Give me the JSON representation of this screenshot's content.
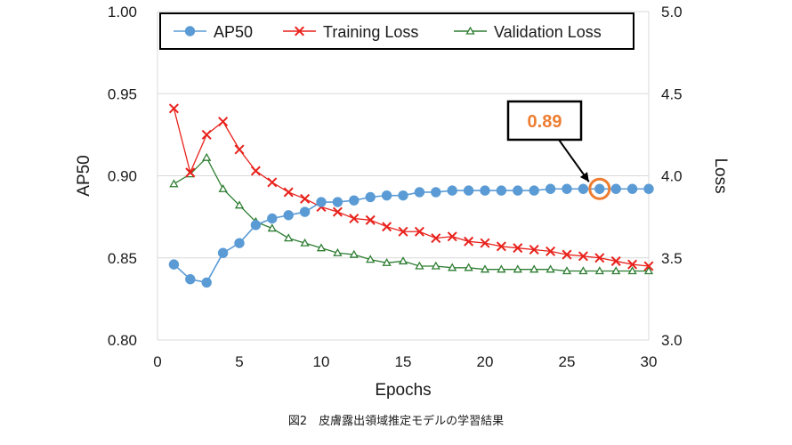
{
  "chart_data": {
    "type": "line",
    "x": [
      1,
      2,
      3,
      4,
      5,
      6,
      7,
      8,
      9,
      10,
      11,
      12,
      13,
      14,
      15,
      16,
      17,
      18,
      19,
      20,
      21,
      22,
      23,
      24,
      25,
      26,
      27,
      28,
      29,
      30
    ],
    "xlabel": "Epochs",
    "xlim": [
      0,
      30
    ],
    "xticks": [
      "0",
      "5",
      "10",
      "15",
      "20",
      "25",
      "30"
    ],
    "ylabel_left": "AP50",
    "ylim_left": [
      0.8,
      1.0
    ],
    "yticks_left": [
      "0.80",
      "0.85",
      "0.90",
      "0.95",
      "1.00"
    ],
    "ylabel_right": "Loss",
    "ylim_right": [
      3.0,
      5.0
    ],
    "yticks_right": [
      "3.0",
      "3.5",
      "4.0",
      "4.5",
      "5.0"
    ],
    "grid": "horizontal",
    "legend_position": "top",
    "series": [
      {
        "name": "AP50",
        "axis": "left",
        "color": "#5b9bd5",
        "marker": "circle",
        "values": [
          0.846,
          0.837,
          0.835,
          0.853,
          0.859,
          0.87,
          0.874,
          0.876,
          0.878,
          0.884,
          0.884,
          0.885,
          0.887,
          0.888,
          0.888,
          0.89,
          0.89,
          0.891,
          0.891,
          0.891,
          0.891,
          0.891,
          0.891,
          0.892,
          0.892,
          0.892,
          0.892,
          0.892,
          0.892,
          0.892
        ]
      },
      {
        "name": "Training Loss",
        "axis": "right",
        "color": "#e8211b",
        "marker": "x",
        "values": [
          4.41,
          4.02,
          4.25,
          4.33,
          4.16,
          4.03,
          3.96,
          3.9,
          3.86,
          3.81,
          3.78,
          3.74,
          3.73,
          3.69,
          3.66,
          3.66,
          3.62,
          3.63,
          3.6,
          3.59,
          3.57,
          3.56,
          3.55,
          3.54,
          3.52,
          3.51,
          3.5,
          3.48,
          3.46,
          3.45
        ]
      },
      {
        "name": "Validation Loss",
        "axis": "right",
        "color": "#2e7d32",
        "marker": "triangle",
        "values": [
          3.95,
          4.01,
          4.11,
          3.92,
          3.82,
          3.72,
          3.68,
          3.62,
          3.59,
          3.56,
          3.53,
          3.52,
          3.49,
          3.47,
          3.48,
          3.45,
          3.45,
          3.44,
          3.44,
          3.43,
          3.43,
          3.43,
          3.43,
          3.43,
          3.42,
          3.42,
          3.42,
          3.42,
          3.42,
          3.42
        ]
      }
    ],
    "annotation": {
      "label": "0.89",
      "x": 27,
      "y": 0.892,
      "series": "AP50",
      "highlight_color": "#ed7d31"
    }
  },
  "caption": "図2　皮膚露出領域推定モデルの学習結果"
}
